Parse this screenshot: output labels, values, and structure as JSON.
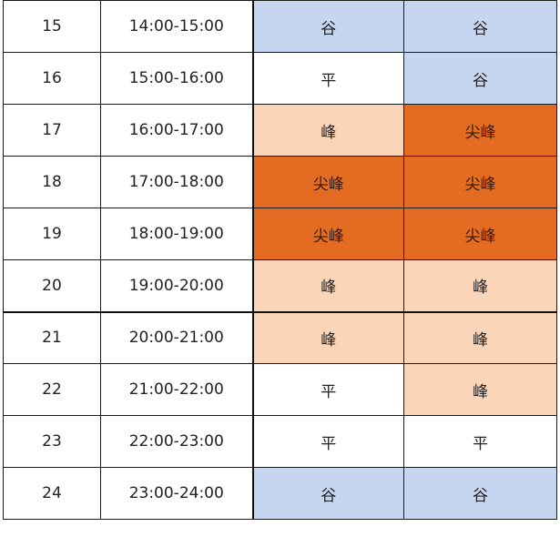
{
  "colors": {
    "谷": "#c6d6f0",
    "平": "#ffffff",
    "峰": "#fad5b8",
    "尖峰": "#e46c22"
  },
  "rows": [
    {
      "idx": "15",
      "time": "14:00-15:00",
      "a": "谷",
      "b": "谷"
    },
    {
      "idx": "16",
      "time": "15:00-16:00",
      "a": "平",
      "b": "谷"
    },
    {
      "idx": "17",
      "time": "16:00-17:00",
      "a": "峰",
      "b": "尖峰"
    },
    {
      "idx": "18",
      "time": "17:00-18:00",
      "a": "尖峰",
      "b": "尖峰"
    },
    {
      "idx": "19",
      "time": "18:00-19:00",
      "a": "尖峰",
      "b": "尖峰"
    },
    {
      "idx": "20",
      "time": "19:00-20:00",
      "a": "峰",
      "b": "峰"
    },
    {
      "idx": "21",
      "time": "20:00-21:00",
      "a": "峰",
      "b": "峰"
    },
    {
      "idx": "22",
      "time": "21:00-22:00",
      "a": "平",
      "b": "峰"
    },
    {
      "idx": "23",
      "time": "22:00-23:00",
      "a": "平",
      "b": "平"
    },
    {
      "idx": "24",
      "time": "23:00-24:00",
      "a": "谷",
      "b": "谷"
    }
  ]
}
